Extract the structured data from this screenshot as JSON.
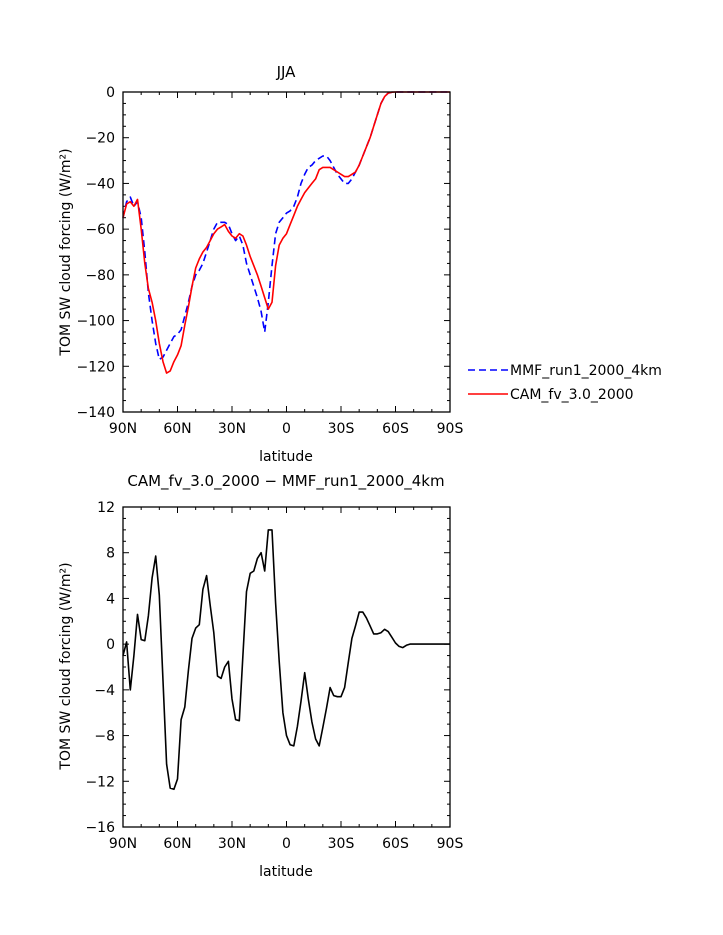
{
  "chart_data": [
    {
      "type": "line",
      "title": "JJA",
      "xlabel": "latitude",
      "ylabel": "TOM SW cloud forcing (W/m²)",
      "xlim": [
        90,
        -90
      ],
      "ylim": [
        -140,
        0
      ],
      "xticks": [
        90,
        60,
        30,
        0,
        -30,
        -60,
        -90
      ],
      "xtick_labels": [
        "90N",
        "60N",
        "30N",
        "0",
        "30S",
        "60S",
        "90S"
      ],
      "yticks": [
        0,
        -20,
        -40,
        -60,
        -80,
        -100,
        -120,
        -140
      ],
      "ytick_labels": [
        "0",
        "−20",
        "−40",
        "−60",
        "−80",
        "−100",
        "−120",
        "−140"
      ],
      "legend_position": "right",
      "series": [
        {
          "name": "MMF_run1_2000_4km",
          "color": "#0000ff",
          "style": "dashed",
          "x": [
            90,
            88,
            86,
            84,
            82,
            80,
            78,
            76,
            74,
            72,
            70,
            68,
            66,
            64,
            62,
            60,
            58,
            56,
            54,
            52,
            50,
            48,
            46,
            44,
            42,
            40,
            38,
            36,
            34,
            32,
            30,
            28,
            26,
            24,
            22,
            20,
            18,
            16,
            14,
            12,
            10,
            8,
            6,
            4,
            2,
            0,
            -2,
            -4,
            -6,
            -8,
            -10,
            -12,
            -14,
            -16,
            -18,
            -20,
            -22,
            -24,
            -26,
            -28,
            -30,
            -32,
            -34,
            -36,
            -38,
            -40,
            -42,
            -44,
            -46,
            -48,
            -50,
            -52,
            -54,
            -56,
            -58,
            -60,
            -62,
            -64,
            -66,
            -68,
            -70,
            -74,
            -78,
            -82,
            -86,
            -90
          ],
          "values": [
            -55,
            -48,
            -46,
            -50,
            -48,
            -55,
            -70,
            -88,
            -100,
            -110,
            -117,
            -116,
            -113,
            -110,
            -107,
            -106,
            -104,
            -98,
            -92,
            -85,
            -80,
            -78,
            -75,
            -70,
            -65,
            -60,
            -57,
            -57,
            -57,
            -58,
            -62,
            -65,
            -63,
            -67,
            -75,
            -80,
            -85,
            -90,
            -96,
            -105,
            -92,
            -76,
            -62,
            -57,
            -55,
            -53,
            -52,
            -50,
            -46,
            -40,
            -36,
            -33,
            -32,
            -30,
            -29,
            -28,
            -28,
            -30,
            -33,
            -36,
            -38,
            -40,
            -40,
            -38,
            -35,
            -32,
            -28,
            -24,
            -20,
            -15,
            -10,
            -5,
            -2,
            -0.5,
            -0.1,
            0,
            0,
            0,
            0,
            0,
            0,
            0,
            0,
            0,
            0,
            0
          ]
        },
        {
          "name": "CAM_fv_3.0_2000",
          "color": "#ff0000",
          "style": "solid",
          "x": [
            90,
            88,
            86,
            84,
            82,
            80,
            78,
            76,
            74,
            72,
            70,
            68,
            66,
            64,
            62,
            60,
            58,
            56,
            54,
            52,
            50,
            48,
            46,
            44,
            42,
            40,
            38,
            36,
            34,
            32,
            30,
            28,
            26,
            24,
            22,
            20,
            18,
            16,
            14,
            12,
            10,
            8,
            6,
            4,
            2,
            0,
            -2,
            -4,
            -6,
            -8,
            -10,
            -12,
            -14,
            -16,
            -18,
            -20,
            -22,
            -24,
            -26,
            -28,
            -30,
            -32,
            -34,
            -36,
            -38,
            -40,
            -42,
            -44,
            -46,
            -48,
            -50,
            -52,
            -54,
            -56,
            -58,
            -60,
            -62,
            -64,
            -66,
            -68,
            -70,
            -74,
            -78,
            -82,
            -86,
            -90
          ],
          "values": [
            -55,
            -49,
            -48,
            -50,
            -47,
            -60,
            -75,
            -86,
            -92,
            -100,
            -110,
            -118,
            -123,
            -122,
            -118,
            -115,
            -111,
            -102,
            -94,
            -85,
            -77,
            -73,
            -70,
            -68,
            -65,
            -62,
            -60,
            -59,
            -58,
            -61,
            -63,
            -64,
            -62,
            -63,
            -67,
            -72,
            -76,
            -80,
            -85,
            -90,
            -95,
            -92,
            -76,
            -67,
            -64,
            -62,
            -58,
            -54,
            -50,
            -47,
            -44,
            -42,
            -40,
            -38,
            -34,
            -33,
            -33,
            -33,
            -34,
            -35,
            -36,
            -37,
            -37,
            -36,
            -35,
            -32,
            -28,
            -24,
            -20,
            -15,
            -10,
            -5,
            -2,
            -0.5,
            -0.1,
            0,
            0,
            0,
            0,
            0,
            0,
            0,
            0,
            0,
            0,
            0
          ]
        }
      ]
    },
    {
      "type": "line",
      "title": "CAM_fv_3.0_2000 − MMF_run1_2000_4km",
      "xlabel": "latitude",
      "ylabel": "TOM SW cloud forcing (W/m²)",
      "xlim": [
        90,
        -90
      ],
      "ylim": [
        -16,
        12
      ],
      "xticks": [
        90,
        60,
        30,
        0,
        -30,
        -60,
        -90
      ],
      "xtick_labels": [
        "90N",
        "60N",
        "30N",
        "0",
        "30S",
        "60S",
        "90S"
      ],
      "yticks": [
        12,
        8,
        4,
        0,
        -4,
        -8,
        -12,
        -16
      ],
      "ytick_labels": [
        "12",
        "8",
        "4",
        "0",
        "−4",
        "−8",
        "−12",
        "−16"
      ],
      "series": [
        {
          "color": "#000000",
          "style": "solid",
          "x": [
            90,
            88,
            86,
            84,
            82,
            80,
            78,
            76,
            74,
            72,
            70,
            68,
            66,
            64,
            62,
            60,
            58,
            56,
            54,
            52,
            50,
            48,
            46,
            44,
            42,
            40,
            38,
            36,
            34,
            32,
            30,
            28,
            26,
            24,
            22,
            20,
            18,
            16,
            14,
            12,
            10,
            8,
            6,
            4,
            2,
            0,
            -2,
            -4,
            -6,
            -8,
            -10,
            -12,
            -14,
            -16,
            -18,
            -20,
            -22,
            -24,
            -26,
            -28,
            -30,
            -32,
            -34,
            -36,
            -38,
            -40,
            -42,
            -44,
            -46,
            -48,
            -50,
            -52,
            -54,
            -56,
            -58,
            -60,
            -62,
            -64,
            -66,
            -68,
            -70,
            -74,
            -78,
            -82,
            -86,
            -90
          ],
          "values": [
            -1,
            0.2,
            -4,
            -1,
            2.6,
            0.4,
            0.3,
            2.5,
            5.8,
            7.7,
            4.3,
            -3.2,
            -10.5,
            -12.6,
            -12.7,
            -11.8,
            -6.6,
            -5.5,
            -2.3,
            0.5,
            1.4,
            1.7,
            4.8,
            6,
            3.4,
            1,
            -2.8,
            -3,
            -2,
            -1.5,
            -4.8,
            -6.6,
            -6.7,
            -1,
            4.6,
            6.2,
            6.4,
            7.5,
            8,
            6.4,
            10,
            10,
            3.6,
            -1.5,
            -6,
            -8,
            -8.8,
            -8.9,
            -7.2,
            -5,
            -2.5,
            -4.8,
            -6.8,
            -8.3,
            -8.9,
            -7.3,
            -5.6,
            -3.8,
            -4.5,
            -4.6,
            -4.6,
            -3.8,
            -1.6,
            0.5,
            1.6,
            2.8,
            2.8,
            2.3,
            1.6,
            0.9,
            0.9,
            1.0,
            1.3,
            1.1,
            0.6,
            0.1,
            -0.2,
            -0.3,
            -0.1,
            0,
            0,
            0,
            0,
            0,
            0,
            0
          ]
        }
      ]
    }
  ]
}
